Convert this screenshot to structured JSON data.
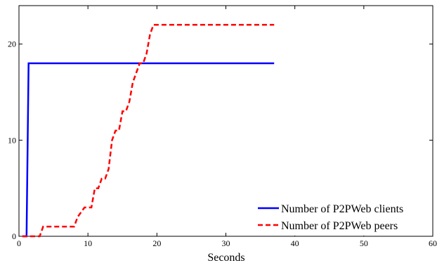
{
  "chart_data": {
    "type": "line",
    "title": "",
    "xlabel": "Seconds",
    "ylabel": "",
    "xlim": [
      0,
      60
    ],
    "ylim": [
      0,
      24
    ],
    "xticks": [
      0,
      10,
      20,
      30,
      40,
      50,
      60
    ],
    "yticks": [
      0,
      10,
      20
    ],
    "xtick_labels": [
      "0",
      "10",
      "20",
      "30",
      "40",
      "50",
      "60"
    ],
    "ytick_labels": [
      "0",
      "10",
      "20"
    ],
    "grid": false,
    "legend_position": "bottom-right",
    "series": [
      {
        "name": "Number of P2PWeb clients",
        "color": "#0000ff",
        "dash": "solid",
        "x": [
          0.5,
          1.1,
          1.4,
          37
        ],
        "y": [
          0,
          0,
          18,
          18
        ]
      },
      {
        "name": "Number of P2PWeb peers",
        "color": "#ff0000",
        "dash": "dashed",
        "x": [
          0.5,
          3,
          3.5,
          8,
          8.5,
          9.5,
          10.5,
          11,
          11.5,
          12,
          12.5,
          13,
          13.5,
          14,
          14.5,
          15,
          15.5,
          16,
          16.5,
          17,
          17.5,
          18,
          18.5,
          19,
          19.5,
          37
        ],
        "y": [
          0,
          0,
          1,
          1,
          2,
          3,
          3,
          5,
          5,
          6,
          6,
          7,
          10,
          11,
          11,
          13,
          13,
          14,
          16,
          17,
          18,
          18,
          19,
          21,
          22,
          22
        ]
      }
    ]
  }
}
